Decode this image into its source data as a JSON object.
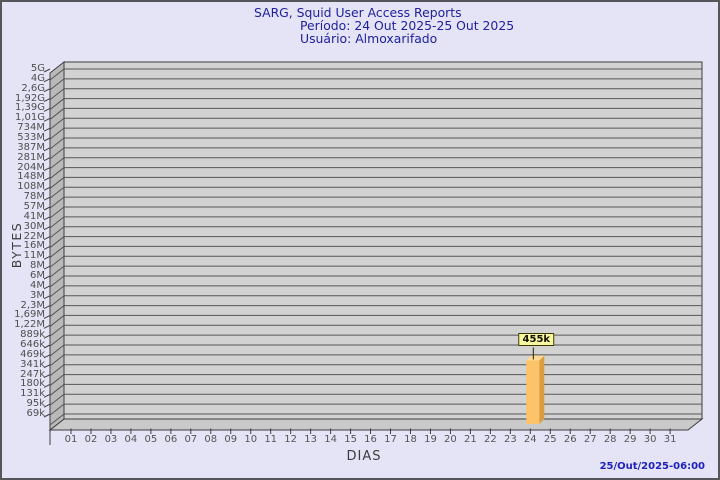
{
  "header": {
    "title": "SARG, Squid User Access Reports",
    "period": "Período: 24 Out 2025-25 Out 2025",
    "user": "Usuário: Almoxarifado"
  },
  "footer": {
    "generated": "25/Out/2025-06:00"
  },
  "chart_data": {
    "type": "bar",
    "title": "SARG, Squid User Access Reports",
    "subtitle": [
      "Período: 24 Out 2025-25 Out 2025",
      "Usuário: Almoxarifado"
    ],
    "xlabel": "DIAS",
    "ylabel": "BYTES",
    "y_scale": "log",
    "y_tick_labels": [
      "5G",
      "4G",
      "2,6G",
      "1,92G",
      "1,39G",
      "1,01G",
      "734M",
      "533M",
      "387M",
      "281M",
      "204M",
      "148M",
      "108M",
      "78M",
      "57M",
      "41M",
      "30M",
      "22M",
      "16M",
      "11M",
      "8M",
      "6M",
      "4M",
      "3M",
      "2,3M",
      "1,69M",
      "1,22M",
      "889k",
      "646k",
      "469k",
      "341k",
      "247k",
      "180k",
      "131k",
      "95k",
      "69k"
    ],
    "y_axis": {
      "base_value": 69000,
      "step_ratio": 1.374
    },
    "x_tick_labels": [
      "01",
      "02",
      "03",
      "04",
      "05",
      "06",
      "07",
      "08",
      "09",
      "10",
      "11",
      "12",
      "13",
      "14",
      "15",
      "16",
      "17",
      "18",
      "19",
      "20",
      "21",
      "22",
      "23",
      "24",
      "25",
      "26",
      "27",
      "28",
      "29",
      "30",
      "31"
    ],
    "bars": [
      {
        "day": "24",
        "value_label": "455k",
        "value_bytes": 455000
      }
    ],
    "colors": {
      "background": "#e4e4f6",
      "panel": "#d2d2d2",
      "wall": "#b9b9b9",
      "floor": "#c9c9c9",
      "grid": "#565656",
      "outline": "#3e3e3e",
      "bar_front": "#fcc368",
      "bar_side": "#db9d3d",
      "bar_top": "#ffda96",
      "value_label_bg": "#faf7a3",
      "title_text": "#21219b",
      "date_text": "#2121bd",
      "axis_text": "#4f4f4f"
    }
  }
}
